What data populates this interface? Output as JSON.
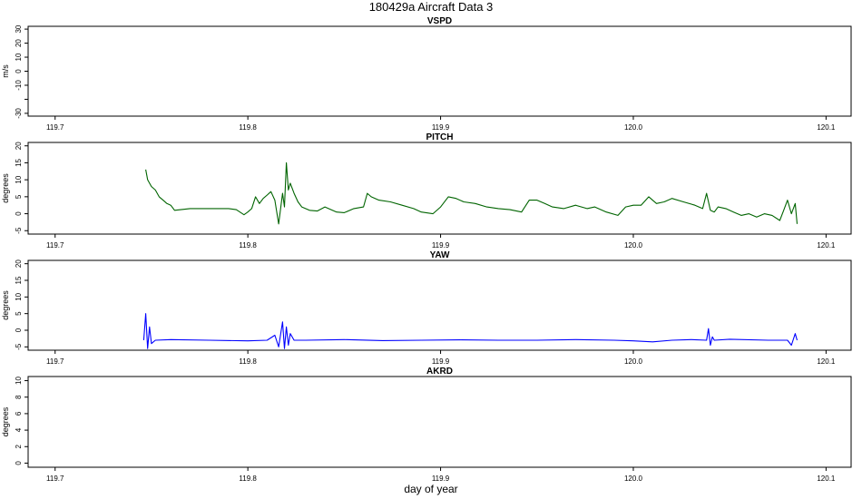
{
  "title": "180429a   Aircraft Data 3",
  "xlabel": "day of year",
  "x_ticks": [
    119.7,
    119.8,
    119.9,
    120.0,
    120.1
  ],
  "x_tick_labels": [
    "119.7",
    "119.8",
    "119.9",
    "120.0",
    "120.1"
  ],
  "xlim": [
    119.686,
    120.113
  ],
  "chart_data": [
    {
      "type": "line",
      "title": "VSPD",
      "ylabel": "m/s",
      "ylim": [
        -32,
        32
      ],
      "y_ticks": [
        -30,
        -20,
        -10,
        0,
        10,
        20,
        30
      ],
      "y_tick_labels": [
        "-30",
        "",
        "-10",
        "0",
        "10",
        "20",
        "30"
      ],
      "color": "#000000",
      "series": []
    },
    {
      "type": "line",
      "title": "PITCH",
      "ylabel": "degrees",
      "ylim": [
        -6,
        21
      ],
      "y_ticks": [
        -5,
        0,
        5,
        10,
        15,
        20
      ],
      "y_tick_labels": [
        "-5",
        "0",
        "5",
        "10",
        "15",
        "20"
      ],
      "color": "#006400",
      "series": [
        {
          "x": [
            119.747,
            119.748,
            119.75,
            119.752,
            119.754,
            119.756,
            119.758,
            119.76,
            119.762,
            119.77,
            119.78,
            119.79,
            119.794,
            119.798,
            119.8,
            119.802,
            119.804,
            119.806,
            119.808,
            119.81,
            119.812,
            119.814,
            119.816,
            119.818,
            119.819,
            119.82,
            119.821,
            119.822,
            119.824,
            119.826,
            119.828,
            119.832,
            119.836,
            119.84,
            119.846,
            119.85,
            119.855,
            119.86,
            119.862,
            119.864,
            119.868,
            119.874,
            119.88,
            119.886,
            119.89,
            119.896,
            119.9,
            119.904,
            119.908,
            119.912,
            119.918,
            119.924,
            119.93,
            119.936,
            119.942,
            119.946,
            119.95,
            119.954,
            119.958,
            119.964,
            119.97,
            119.976,
            119.98,
            119.986,
            119.992,
            119.996,
            120.0,
            120.004,
            120.008,
            120.012,
            120.016,
            120.02,
            120.026,
            120.032,
            120.036,
            120.038,
            120.04,
            120.042,
            120.044,
            120.048,
            120.052,
            120.056,
            120.06,
            120.064,
            120.068,
            120.072,
            120.076,
            120.078,
            120.08,
            120.082,
            120.084,
            120.085
          ],
          "y": [
            13,
            10,
            8,
            7,
            5,
            4,
            3,
            2.5,
            1,
            1.5,
            1.5,
            1.5,
            1.2,
            -0.3,
            0.5,
            1.5,
            5,
            3,
            4.5,
            5.5,
            6.5,
            4,
            -3,
            6,
            2,
            15,
            7,
            9,
            6,
            3.5,
            2,
            1,
            0.8,
            2,
            0.5,
            0.3,
            1.5,
            2,
            6,
            5,
            4,
            3.5,
            2.5,
            1.5,
            0.5,
            0,
            2,
            5,
            4.5,
            3.5,
            3,
            2,
            1.5,
            1.2,
            0.5,
            4,
            4,
            3,
            2,
            1.5,
            2.5,
            1.5,
            2,
            0.5,
            -0.5,
            2,
            2.5,
            2.5,
            5,
            3,
            3.5,
            4.5,
            3.5,
            2.5,
            1.5,
            6,
            1,
            0.5,
            2,
            1.5,
            0.5,
            -0.5,
            0,
            -1,
            0,
            -0.5,
            -2,
            1,
            4,
            0,
            3,
            -3
          ]
        }
      ]
    },
    {
      "type": "line",
      "title": "YAW",
      "ylabel": "degrees",
      "ylim": [
        -6,
        21
      ],
      "y_ticks": [
        -5,
        0,
        5,
        10,
        15,
        20
      ],
      "y_tick_labels": [
        "-5",
        "0",
        "5",
        "10",
        "15",
        "20"
      ],
      "color": "#0000ff",
      "series": [
        {
          "x": [
            119.746,
            119.747,
            119.748,
            119.749,
            119.75,
            119.752,
            119.76,
            119.78,
            119.8,
            119.81,
            119.814,
            119.816,
            119.818,
            119.819,
            119.82,
            119.821,
            119.822,
            119.824,
            119.83,
            119.85,
            119.87,
            119.89,
            119.91,
            119.93,
            119.95,
            119.97,
            119.99,
            120.0,
            120.01,
            120.02,
            120.03,
            120.038,
            120.039,
            120.04,
            120.041,
            120.042,
            120.05,
            120.07,
            120.08,
            120.082,
            120.084,
            120.085
          ],
          "y": [
            -3,
            5,
            -5.5,
            1,
            -4,
            -3,
            -2.8,
            -3,
            -3.2,
            -3,
            -1.5,
            -5,
            2.5,
            -5.5,
            1,
            -4.5,
            -1,
            -3,
            -3,
            -2.8,
            -3.1,
            -3,
            -2.9,
            -3,
            -3,
            -2.8,
            -3,
            -3.2,
            -3.5,
            -3,
            -2.8,
            -3,
            0.5,
            -4.5,
            -2,
            -3,
            -2.7,
            -3,
            -3,
            -4.5,
            -1,
            -3
          ]
        }
      ]
    },
    {
      "type": "line",
      "title": "AKRD",
      "ylabel": "degrees",
      "ylim": [
        -0.5,
        10.5
      ],
      "y_ticks": [
        0,
        2,
        4,
        6,
        8,
        10
      ],
      "y_tick_labels": [
        "0",
        "2",
        "4",
        "6",
        "8",
        "10"
      ],
      "color": "#000000",
      "series": []
    }
  ]
}
